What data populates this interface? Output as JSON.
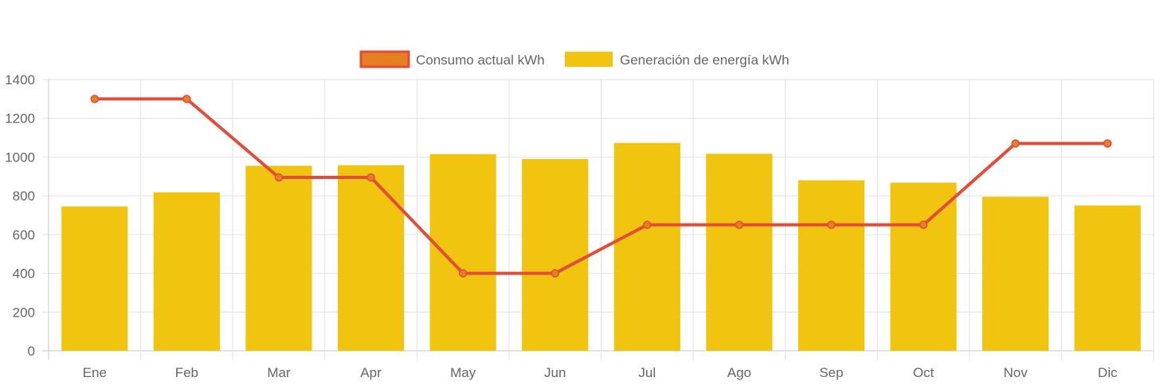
{
  "chart_data": {
    "type": "bar",
    "categories": [
      "Ene",
      "Feb",
      "Mar",
      "Apr",
      "May",
      "Jun",
      "Jul",
      "Ago",
      "Sep",
      "Oct",
      "Nov",
      "Dic"
    ],
    "series": [
      {
        "name": "Consumo actual kWh",
        "type": "line",
        "color": "#e34c3a",
        "point_color": "#e67e22",
        "values": [
          1300,
          1300,
          895,
          895,
          400,
          400,
          650,
          650,
          650,
          650,
          1070,
          1070
        ]
      },
      {
        "name": "Generación de energía kWh",
        "type": "bar",
        "color": "#f1c40f",
        "values": [
          745,
          818,
          955,
          958,
          1015,
          990,
          1073,
          1017,
          880,
          868,
          795,
          750
        ]
      }
    ],
    "y_ticks": [
      "0",
      "200",
      "400",
      "600",
      "800",
      "1000",
      "1200",
      "1400"
    ],
    "ylim": [
      0,
      1400
    ],
    "legend_position": "top",
    "grid": true,
    "title": "",
    "xlabel": "",
    "ylabel": ""
  }
}
